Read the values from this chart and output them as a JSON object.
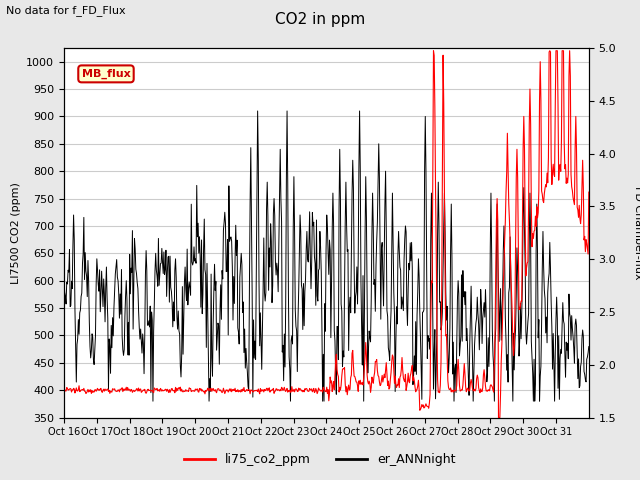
{
  "title": "CO2 in ppm",
  "subtitle": "No data for f_FD_Flux",
  "ylabel_left": "LI7500 CO2 (ppm)",
  "ylabel_right": "FD Chamber-flux",
  "ylim_left": [
    350,
    1025
  ],
  "ylim_right": [
    1.5,
    5.0
  ],
  "yticks_left": [
    350,
    400,
    450,
    500,
    550,
    600,
    650,
    700,
    750,
    800,
    850,
    900,
    950,
    1000
  ],
  "yticks_right": [
    1.5,
    2.0,
    2.5,
    3.0,
    3.5,
    4.0,
    4.5,
    5.0
  ],
  "xtick_labels": [
    "Oct 16",
    "Oct 17",
    "Oct 18",
    "Oct 19",
    "Oct 20",
    "Oct 21",
    "Oct 22",
    "Oct 23",
    "Oct 24",
    "Oct 25",
    "Oct 26",
    "Oct 27",
    "Oct 28",
    "Oct 29",
    "Oct 30",
    "Oct 31"
  ],
  "line_red_color": "#ff0000",
  "line_black_color": "#000000",
  "legend_red_label": "li75_co2_ppm",
  "legend_black_label": "er_ANNnight",
  "mb_flux_box_facecolor": "#ffffcc",
  "mb_flux_box_edgecolor": "#cc0000",
  "mb_flux_text_color": "#cc0000",
  "background_color": "#e8e8e8",
  "plot_bg_color": "#ffffff",
  "grid_color": "#cccccc",
  "n_days": 16,
  "n_per_day": 48
}
